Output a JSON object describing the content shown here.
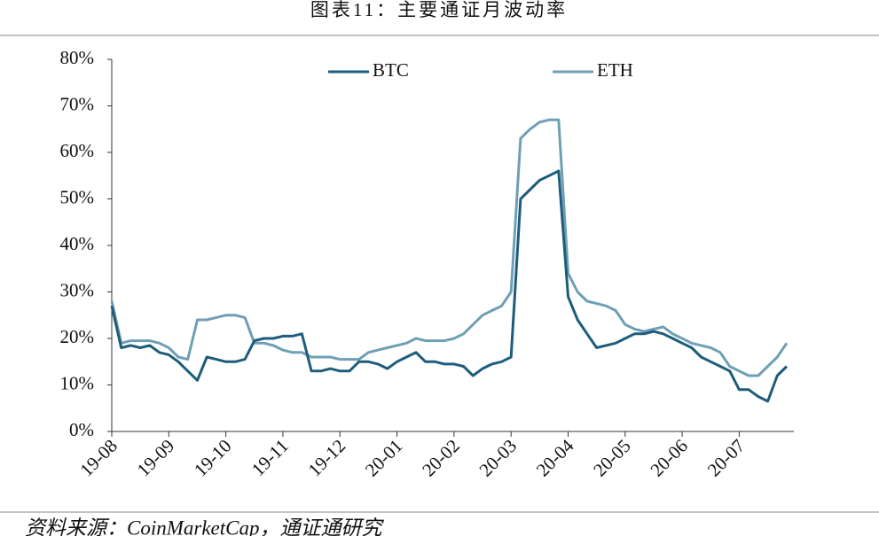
{
  "chart_data": {
    "type": "line",
    "title": "图表11：主要通证月波动率",
    "source": "资料来源：CoinMarketCap，通证通研究",
    "categories": [
      "19-08",
      null,
      null,
      null,
      null,
      null,
      "19-09",
      null,
      null,
      null,
      null,
      null,
      "19-10",
      null,
      null,
      null,
      null,
      null,
      "19-11",
      null,
      null,
      null,
      null,
      null,
      "19-12",
      null,
      null,
      null,
      null,
      null,
      "20-01",
      null,
      null,
      null,
      null,
      null,
      "20-02",
      null,
      null,
      null,
      null,
      null,
      "20-03",
      null,
      null,
      null,
      null,
      null,
      "20-04",
      null,
      null,
      null,
      null,
      null,
      "20-05",
      null,
      null,
      null,
      null,
      null,
      "20-06",
      null,
      null,
      null,
      null,
      null,
      "20-07",
      null,
      null,
      null,
      null,
      null
    ],
    "series": [
      {
        "name": "BTC",
        "color": "#1d5d7b",
        "values": [
          27,
          18,
          18.5,
          18,
          18.5,
          17,
          16.5,
          15,
          13,
          11,
          16,
          15.5,
          15,
          15,
          15.5,
          19.5,
          20,
          20,
          20.5,
          20.5,
          21,
          13,
          13,
          13.5,
          13,
          13,
          15,
          15,
          14.5,
          13.5,
          15,
          16,
          17,
          15,
          15,
          14.5,
          14.5,
          14,
          12,
          13.5,
          14.5,
          15,
          16,
          50,
          52,
          54,
          55,
          56,
          29,
          24,
          21,
          18,
          18.5,
          19,
          20,
          21,
          21,
          21.5,
          21,
          20,
          19,
          18,
          16,
          15,
          14,
          13,
          9,
          9,
          7.5,
          6.5,
          12,
          14
        ]
      },
      {
        "name": "ETH",
        "color": "#6f9fb5",
        "values": [
          28,
          19,
          19.5,
          19.5,
          19.5,
          19,
          18,
          16,
          15.5,
          24,
          24,
          24.5,
          25,
          25,
          24.5,
          19,
          19,
          18.5,
          17.5,
          17,
          17,
          16,
          16,
          16,
          15.5,
          15.5,
          15.5,
          17,
          17.5,
          18,
          18.5,
          19,
          20,
          19.5,
          19.5,
          19.5,
          20,
          21,
          23,
          25,
          26,
          27,
          30,
          63,
          65,
          66.5,
          67,
          67,
          34,
          30,
          28,
          27.5,
          27,
          26,
          23,
          22,
          21.5,
          22,
          22.5,
          21,
          20,
          19,
          18.5,
          18,
          17,
          14,
          13,
          12,
          12,
          14,
          16,
          19
        ]
      }
    ],
    "ylim": [
      0,
      80
    ],
    "yticks": [
      {
        "value": 0,
        "label": "0%"
      },
      {
        "value": 10,
        "label": "10%"
      },
      {
        "value": 20,
        "label": "20%"
      },
      {
        "value": 30,
        "label": "30%"
      },
      {
        "value": 40,
        "label": "40%"
      },
      {
        "value": 50,
        "label": "50%"
      },
      {
        "value": 60,
        "label": "60%"
      },
      {
        "value": 70,
        "label": "70%"
      },
      {
        "value": 80,
        "label": "80%"
      }
    ],
    "grid": false,
    "legend": "top"
  }
}
